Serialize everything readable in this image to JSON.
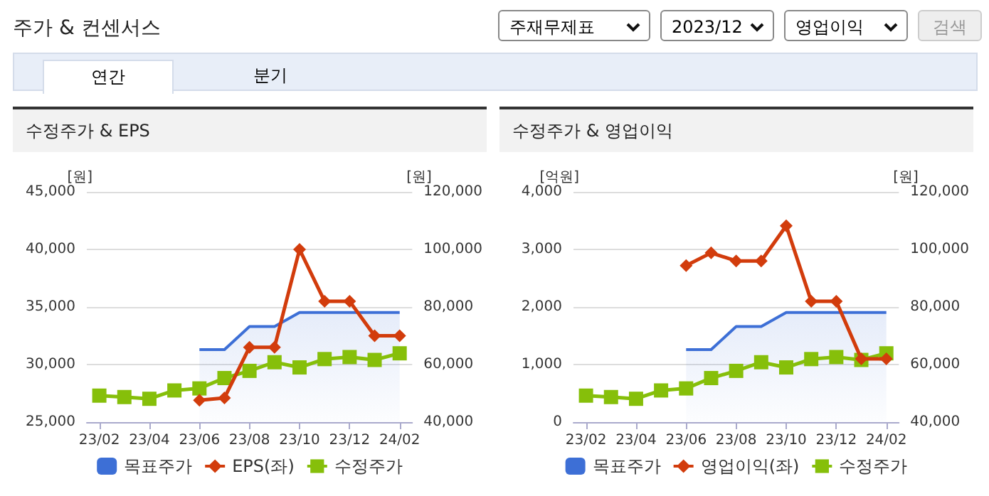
{
  "chart_data": [
    {
      "type": "line",
      "title": "수정주가 & EPS",
      "annotations": [
        "주가 & 컨센서스",
        "주재무제표",
        "2023/12",
        "영업이익",
        "검색",
        "연간",
        "분기"
      ],
      "ylabel": "[원]",
      "y2label": "[원]",
      "categories": [
        "23/02",
        null,
        "23/04",
        null,
        "23/06",
        null,
        "23/08",
        null,
        "23/10",
        null,
        "23/12",
        null,
        "24/02"
      ],
      "series": [
        {
          "name": "목표주가",
          "type": "area",
          "axis": "y2",
          "color": "#3d6fd6",
          "marker": "none",
          "values": [
            null,
            null,
            null,
            null,
            65200,
            65200,
            73200,
            73200,
            78100,
            78100,
            78100,
            78100,
            78100
          ]
        },
        {
          "name": "EPS(좌)",
          "color": "#d23c0c",
          "marker": "diamond",
          "values": [
            null,
            null,
            null,
            null,
            26900,
            27100,
            31500,
            31500,
            40000,
            35500,
            35500,
            32500,
            32500
          ]
        },
        {
          "name": "수정주가",
          "axis": "y2",
          "color": "#86bf0a",
          "marker": "square",
          "values": [
            49200,
            48700,
            48100,
            51000,
            51700,
            55300,
            57800,
            60800,
            59000,
            61900,
            62600,
            61600,
            63900
          ]
        }
      ],
      "ylim": [
        25000,
        45000
      ],
      "yticks": [
        {
          "value": 25000,
          "label": "25,000"
        },
        {
          "value": 30000,
          "label": "30,000"
        },
        {
          "value": 35000,
          "label": "35,000"
        },
        {
          "value": 40000,
          "label": "40,000"
        },
        {
          "value": 45000,
          "label": "45,000"
        }
      ],
      "y2lim": [
        40000,
        120000
      ],
      "y2ticks": [
        {
          "value": 40000,
          "label": "40,000"
        },
        {
          "value": 60000,
          "label": "60,000"
        },
        {
          "value": 80000,
          "label": "80,000"
        },
        {
          "value": 100000,
          "label": "100,000"
        },
        {
          "value": 120000,
          "label": "120,000"
        }
      ],
      "grid": "y",
      "legend": "bottom"
    },
    {
      "type": "line",
      "title": "수정주가 & 영업이익",
      "ylabel": "[억원]",
      "y2label": "[원]",
      "categories": [
        "23/02",
        null,
        "23/04",
        null,
        "23/06",
        null,
        "23/08",
        null,
        "23/10",
        null,
        "23/12",
        null,
        "24/02"
      ],
      "series": [
        {
          "name": "목표주가",
          "type": "area",
          "axis": "y2",
          "color": "#3d6fd6",
          "marker": "none",
          "values": [
            null,
            null,
            null,
            null,
            65200,
            65200,
            73200,
            73200,
            78100,
            78100,
            78100,
            78100,
            78100
          ]
        },
        {
          "name": "영업이익(좌)",
          "color": "#d23c0c",
          "marker": "diamond",
          "values": [
            null,
            null,
            null,
            null,
            2720,
            2940,
            2800,
            2800,
            3410,
            2100,
            2100,
            1100,
            1100
          ]
        },
        {
          "name": "수정주가",
          "axis": "y2",
          "color": "#86bf0a",
          "marker": "square",
          "values": [
            49200,
            48700,
            48100,
            51000,
            51700,
            55300,
            57800,
            60800,
            59000,
            61900,
            62600,
            61600,
            63900
          ]
        }
      ],
      "ylim": [
        0,
        4000
      ],
      "yticks": [
        0,
        {
          "value": 1000,
          "label": "1,000"
        },
        {
          "value": 2000,
          "label": "2,000"
        },
        {
          "value": 3000,
          "label": "3,000"
        },
        {
          "value": 4000,
          "label": "4,000"
        }
      ],
      "y2lim": [
        40000,
        120000
      ],
      "y2ticks": [
        {
          "value": 40000,
          "label": "40,000"
        },
        {
          "value": 60000,
          "label": "60,000"
        },
        {
          "value": 80000,
          "label": "80,000"
        },
        {
          "value": 100000,
          "label": "100,000"
        },
        {
          "value": 120000,
          "label": "120,000"
        }
      ],
      "grid": "y",
      "legend": "bottom"
    }
  ]
}
